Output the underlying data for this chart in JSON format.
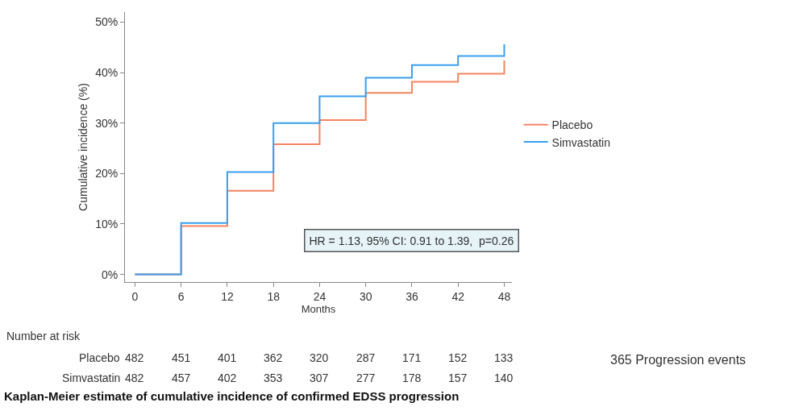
{
  "chart_data": {
    "type": "step",
    "title": "Kaplan-Meier estimate of cumulative incidence of confirmed EDSS progression",
    "xlabel": "Months",
    "ylabel": "Cumulative incidence (%)",
    "x": [
      0,
      6,
      12,
      18,
      24,
      30,
      36,
      42,
      48
    ],
    "series": [
      {
        "name": "Placebo",
        "color": "#f4845f",
        "values": [
          0,
          9.6,
          16.6,
          25.8,
          30.6,
          36.0,
          38.2,
          39.8,
          42.4
        ]
      },
      {
        "name": "Simvastatin",
        "color": "#3a9ff0",
        "values": [
          0,
          10.2,
          20.3,
          30.0,
          35.3,
          39.0,
          41.5,
          43.3,
          45.6
        ]
      }
    ],
    "xlim": [
      -1.3,
      49
    ],
    "xticks": [
      0,
      6,
      12,
      18,
      24,
      30,
      36,
      42,
      48
    ],
    "ylim": [
      -1.5,
      52
    ],
    "yticks": [
      {
        "value": 0,
        "label": "0%"
      },
      {
        "value": 10,
        "label": "10%"
      },
      {
        "value": 20,
        "label": "20%"
      },
      {
        "value": 30,
        "label": "30%"
      },
      {
        "value": 40,
        "label": "40%"
      },
      {
        "value": 50,
        "label": "50%"
      }
    ],
    "legend": "right",
    "line_style": "solid",
    "marker": "none",
    "annotations": [
      "HR = 1.13, 95% CI: 0.91 to 1.39,  p=0.26",
      "Number at risk",
      "Placebo 482 451 401 362 320 287 171 152 133",
      "Simvastatin 482 457 402 353 307 277 178 157 140",
      "365 Progression events"
    ]
  }
}
